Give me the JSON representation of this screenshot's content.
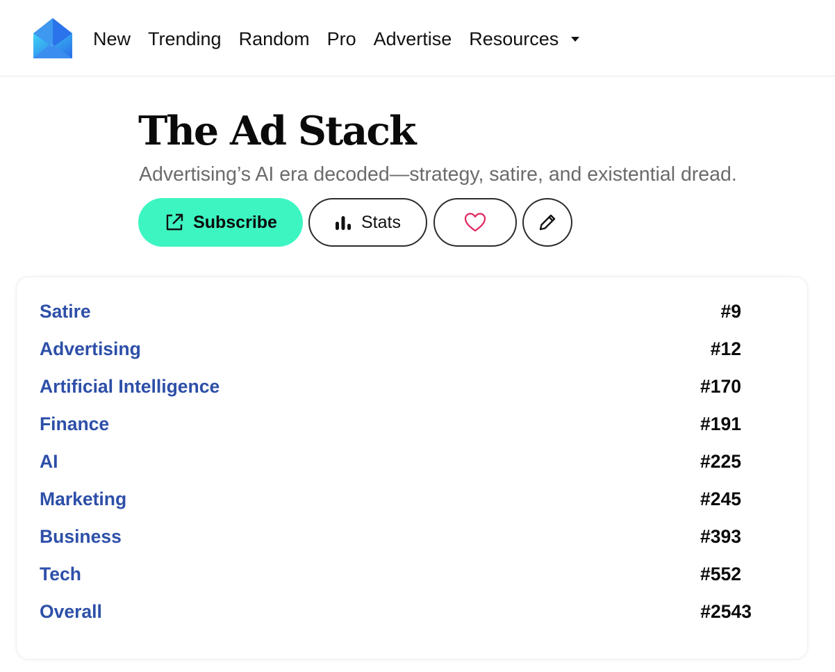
{
  "nav": {
    "logo_icon": "envelope-logo-icon",
    "links": [
      "New",
      "Trending",
      "Random",
      "Pro",
      "Advertise"
    ],
    "resources_label": "Resources"
  },
  "publication": {
    "title": "The Ad Stack",
    "tagline": "Advertising’s AI era decoded—strategy, satire, and existential dread."
  },
  "actions": {
    "subscribe_label": "Subscribe",
    "stats_label": "Stats",
    "like_icon": "heart-icon",
    "edit_icon": "pencil-icon"
  },
  "colors": {
    "accent": "#3df5c1",
    "link": "#2d4fa8",
    "heart": "#e0245e"
  },
  "rankings": [
    {
      "category": "Satire",
      "rank": "#9"
    },
    {
      "category": "Advertising",
      "rank": "#12"
    },
    {
      "category": "Artificial Intelligence",
      "rank": "#170"
    },
    {
      "category": "Finance",
      "rank": "#191"
    },
    {
      "category": "AI",
      "rank": "#225"
    },
    {
      "category": "Marketing",
      "rank": "#245"
    },
    {
      "category": "Business",
      "rank": "#393"
    },
    {
      "category": "Tech",
      "rank": "#552"
    },
    {
      "category": "Overall",
      "rank": "#2543"
    }
  ]
}
